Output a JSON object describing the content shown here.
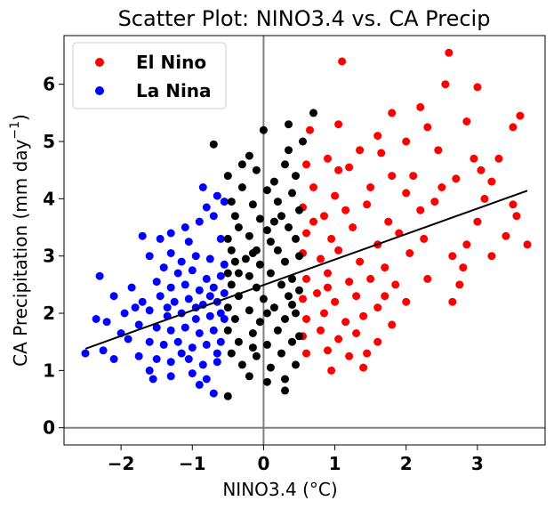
{
  "chart_data": {
    "type": "scatter",
    "title": "Scatter Plot: NINO3.4 vs. CA Precip",
    "xlabel": "NINO3.4 (°C)",
    "ylabel_main": "CA Precipitation (mm day",
    "ylabel_sup": "−1",
    "ylabel_close": ")",
    "xlim": [
      -2.8,
      3.95
    ],
    "ylim": [
      -0.3,
      6.85
    ],
    "xticks": [
      -2,
      -1,
      0,
      1,
      2,
      3
    ],
    "xtick_labels": [
      "−2",
      "−1",
      "0",
      "1",
      "2",
      "3"
    ],
    "yticks": [
      0,
      1,
      2,
      3,
      4,
      5,
      6
    ],
    "ytick_labels": [
      "0",
      "1",
      "2",
      "3",
      "4",
      "5",
      "6"
    ],
    "reference_lines": {
      "x": 0,
      "y": 0,
      "color": "#808080"
    },
    "regression_line": {
      "x1": -2.5,
      "y1": 1.38,
      "x2": 3.7,
      "y2": 4.14,
      "color": "#000000"
    },
    "legend_position": "top-left",
    "colors": {
      "el_nino": "#ff0000",
      "la_nina": "#0000ff",
      "neutral": "#000000"
    },
    "series": [
      {
        "name": "El Nino",
        "color": "#ff0000",
        "points": [
          [
            1.1,
            6.4
          ],
          [
            2.6,
            6.55
          ],
          [
            2.55,
            6.0
          ],
          [
            3.0,
            5.95
          ],
          [
            2.2,
            5.6
          ],
          [
            2.85,
            5.35
          ],
          [
            3.6,
            5.45
          ],
          [
            1.8,
            5.5
          ],
          [
            1.6,
            5.1
          ],
          [
            2.0,
            5.0
          ],
          [
            2.3,
            5.25
          ],
          [
            3.5,
            5.25
          ],
          [
            0.65,
            5.2
          ],
          [
            1.05,
            5.3
          ],
          [
            1.35,
            4.85
          ],
          [
            0.9,
            4.7
          ],
          [
            1.65,
            4.8
          ],
          [
            2.45,
            4.85
          ],
          [
            2.95,
            4.7
          ],
          [
            3.05,
            4.5
          ],
          [
            3.3,
            4.7
          ],
          [
            0.6,
            4.6
          ],
          [
            1.2,
            4.55
          ],
          [
            1.8,
            4.4
          ],
          [
            2.1,
            4.4
          ],
          [
            2.7,
            4.35
          ],
          [
            3.2,
            4.3
          ],
          [
            0.7,
            4.2
          ],
          [
            1.0,
            4.05
          ],
          [
            1.5,
            4.2
          ],
          [
            2.0,
            4.1
          ],
          [
            2.5,
            4.2
          ],
          [
            3.1,
            4.0
          ],
          [
            3.5,
            3.9
          ],
          [
            0.55,
            3.85
          ],
          [
            0.85,
            3.7
          ],
          [
            1.15,
            3.8
          ],
          [
            1.45,
            3.9
          ],
          [
            1.75,
            3.6
          ],
          [
            2.4,
            3.95
          ],
          [
            3.55,
            3.7
          ],
          [
            0.6,
            3.4
          ],
          [
            0.95,
            3.3
          ],
          [
            1.25,
            3.5
          ],
          [
            1.6,
            3.2
          ],
          [
            1.9,
            3.4
          ],
          [
            2.25,
            3.3
          ],
          [
            2.85,
            3.2
          ],
          [
            3.4,
            3.35
          ],
          [
            3.7,
            3.2
          ],
          [
            0.55,
            3.05
          ],
          [
            0.8,
            2.95
          ],
          [
            1.05,
            3.1
          ],
          [
            1.35,
            2.9
          ],
          [
            1.7,
            2.8
          ],
          [
            2.05,
            3.05
          ],
          [
            2.65,
            3.0
          ],
          [
            3.2,
            3.0
          ],
          [
            0.6,
            2.6
          ],
          [
            0.9,
            2.7
          ],
          [
            1.2,
            2.55
          ],
          [
            1.5,
            2.6
          ],
          [
            1.85,
            2.5
          ],
          [
            2.3,
            2.6
          ],
          [
            2.75,
            2.5
          ],
          [
            0.55,
            2.25
          ],
          [
            0.75,
            2.35
          ],
          [
            1.0,
            2.2
          ],
          [
            1.3,
            2.3
          ],
          [
            1.6,
            2.1
          ],
          [
            2.0,
            2.2
          ],
          [
            2.65,
            2.2
          ],
          [
            0.6,
            1.9
          ],
          [
            0.85,
            2.0
          ],
          [
            1.15,
            1.85
          ],
          [
            1.4,
            1.95
          ],
          [
            1.8,
            1.8
          ],
          [
            0.55,
            1.6
          ],
          [
            0.8,
            1.7
          ],
          [
            1.05,
            1.55
          ],
          [
            1.3,
            1.65
          ],
          [
            1.6,
            1.5
          ],
          [
            0.6,
            1.3
          ],
          [
            0.9,
            1.35
          ],
          [
            1.2,
            1.25
          ],
          [
            1.45,
            1.3
          ],
          [
            0.95,
            1.0
          ],
          [
            1.4,
            1.05
          ],
          [
            0.7,
            3.6
          ],
          [
            1.05,
            4.5
          ],
          [
            2.2,
            3.8
          ],
          [
            2.8,
            2.8
          ],
          [
            3.0,
            3.6
          ],
          [
            1.7,
            2.3
          ],
          [
            0.9,
            2.45
          ]
        ]
      },
      {
        "name": "La Nina",
        "color": "#0000ff",
        "points": [
          [
            -0.85,
            4.2
          ],
          [
            -0.65,
            4.05
          ],
          [
            -0.8,
            3.85
          ],
          [
            -0.55,
            3.95
          ],
          [
            -1.1,
            3.5
          ],
          [
            -0.9,
            3.6
          ],
          [
            -0.7,
            3.7
          ],
          [
            -1.3,
            3.4
          ],
          [
            -1.7,
            3.35
          ],
          [
            -1.45,
            3.3
          ],
          [
            -1.05,
            3.25
          ],
          [
            -0.6,
            3.3
          ],
          [
            -1.6,
            3.0
          ],
          [
            -1.3,
            3.05
          ],
          [
            -1.15,
            2.9
          ],
          [
            -0.95,
            3.0
          ],
          [
            -0.75,
            2.95
          ],
          [
            -0.55,
            2.85
          ],
          [
            -2.3,
            2.65
          ],
          [
            -1.4,
            2.8
          ],
          [
            -1.2,
            2.7
          ],
          [
            -1.0,
            2.75
          ],
          [
            -0.8,
            2.6
          ],
          [
            -0.6,
            2.65
          ],
          [
            -1.85,
            2.45
          ],
          [
            -1.5,
            2.55
          ],
          [
            -1.3,
            2.45
          ],
          [
            -1.1,
            2.5
          ],
          [
            -0.9,
            2.4
          ],
          [
            -0.7,
            2.45
          ],
          [
            -0.55,
            2.35
          ],
          [
            -2.1,
            2.3
          ],
          [
            -1.7,
            2.2
          ],
          [
            -1.45,
            2.3
          ],
          [
            -1.25,
            2.2
          ],
          [
            -1.05,
            2.25
          ],
          [
            -0.85,
            2.15
          ],
          [
            -0.65,
            2.2
          ],
          [
            -1.95,
            2.0
          ],
          [
            -1.6,
            2.05
          ],
          [
            -1.35,
            1.95
          ],
          [
            -1.15,
            2.0
          ],
          [
            -0.95,
            1.9
          ],
          [
            -0.75,
            1.95
          ],
          [
            -0.55,
            1.9
          ],
          [
            -2.35,
            1.9
          ],
          [
            -2.2,
            1.85
          ],
          [
            -1.75,
            1.8
          ],
          [
            -1.5,
            1.75
          ],
          [
            -1.3,
            1.7
          ],
          [
            -1.1,
            1.75
          ],
          [
            -0.9,
            1.65
          ],
          [
            -0.7,
            1.7
          ],
          [
            -2.5,
            1.3
          ],
          [
            -2.25,
            1.35
          ],
          [
            -1.9,
            1.55
          ],
          [
            -1.6,
            1.5
          ],
          [
            -1.4,
            1.45
          ],
          [
            -1.2,
            1.5
          ],
          [
            -1.0,
            1.4
          ],
          [
            -0.8,
            1.45
          ],
          [
            -0.6,
            1.5
          ],
          [
            -2.1,
            1.2
          ],
          [
            -1.75,
            1.25
          ],
          [
            -1.5,
            1.2
          ],
          [
            -1.3,
            1.15
          ],
          [
            -1.05,
            1.2
          ],
          [
            -0.85,
            1.1
          ],
          [
            -0.65,
            1.15
          ],
          [
            -1.6,
            1.0
          ],
          [
            -1.3,
            0.9
          ],
          [
            -1.0,
            0.95
          ],
          [
            -0.8,
            0.85
          ],
          [
            -1.55,
            0.85
          ],
          [
            -0.7,
            0.6
          ],
          [
            -0.9,
            0.75
          ],
          [
            -1.15,
            1.3
          ],
          [
            -0.6,
            2.0
          ],
          [
            -0.75,
            2.3
          ],
          [
            -0.95,
            2.1
          ],
          [
            -1.8,
            2.1
          ],
          [
            -2.0,
            1.65
          ],
          [
            -1.35,
            2.1
          ],
          [
            -0.65,
            1.3
          ]
        ]
      },
      {
        "name": "",
        "color": "#000000",
        "points": [
          [
            -0.7,
            4.95
          ],
          [
            0.0,
            5.2
          ],
          [
            0.7,
            5.5
          ],
          [
            0.35,
            5.3
          ],
          [
            0.55,
            5.0
          ],
          [
            -0.2,
            4.75
          ],
          [
            0.3,
            4.6
          ],
          [
            -0.5,
            4.4
          ],
          [
            -0.1,
            4.5
          ],
          [
            0.15,
            4.3
          ],
          [
            0.45,
            4.4
          ],
          [
            -0.3,
            4.2
          ],
          [
            0.05,
            4.15
          ],
          [
            0.4,
            4.1
          ],
          [
            -0.45,
            3.95
          ],
          [
            -0.15,
            3.9
          ],
          [
            0.2,
            3.95
          ],
          [
            0.5,
            3.8
          ],
          [
            -0.4,
            3.7
          ],
          [
            -0.05,
            3.65
          ],
          [
            0.25,
            3.7
          ],
          [
            -0.35,
            3.5
          ],
          [
            0.05,
            3.45
          ],
          [
            0.35,
            3.5
          ],
          [
            -0.5,
            3.3
          ],
          [
            -0.2,
            3.35
          ],
          [
            0.1,
            3.25
          ],
          [
            0.45,
            3.3
          ],
          [
            -0.45,
            3.1
          ],
          [
            -0.15,
            3.05
          ],
          [
            0.2,
            3.1
          ],
          [
            0.5,
            3.0
          ],
          [
            -0.4,
            2.9
          ],
          [
            -0.05,
            2.85
          ],
          [
            0.3,
            2.9
          ],
          [
            -0.5,
            2.7
          ],
          [
            -0.2,
            2.65
          ],
          [
            0.1,
            2.7
          ],
          [
            0.4,
            2.6
          ],
          [
            -0.45,
            2.5
          ],
          [
            -0.1,
            2.45
          ],
          [
            0.25,
            2.5
          ],
          [
            0.5,
            2.4
          ],
          [
            -0.35,
            2.3
          ],
          [
            0.0,
            2.25
          ],
          [
            0.35,
            2.3
          ],
          [
            -0.5,
            2.1
          ],
          [
            -0.2,
            2.05
          ],
          [
            0.15,
            2.1
          ],
          [
            0.45,
            2.0
          ],
          [
            -0.4,
            1.9
          ],
          [
            -0.05,
            1.85
          ],
          [
            0.3,
            1.9
          ],
          [
            -0.5,
            1.7
          ],
          [
            -0.15,
            1.65
          ],
          [
            0.2,
            1.7
          ],
          [
            0.5,
            1.6
          ],
          [
            -0.35,
            1.5
          ],
          [
            0.05,
            1.45
          ],
          [
            0.4,
            1.5
          ],
          [
            -0.45,
            1.3
          ],
          [
            -0.1,
            1.25
          ],
          [
            0.25,
            1.3
          ],
          [
            -0.3,
            1.1
          ],
          [
            0.1,
            1.05
          ],
          [
            0.45,
            1.1
          ],
          [
            -0.2,
            0.9
          ],
          [
            0.3,
            0.85
          ],
          [
            -0.5,
            0.55
          ],
          [
            0.3,
            0.65
          ],
          [
            0.05,
            0.8
          ],
          [
            -0.25,
            2.95
          ],
          [
            0.15,
            3.6
          ],
          [
            -0.3,
            4.6
          ],
          [
            0.35,
            4.85
          ],
          [
            -0.1,
            3.1
          ],
          [
            0.05,
            2.0
          ],
          [
            -0.35,
            2.7
          ],
          [
            0.4,
            2.15
          ],
          [
            -0.15,
            1.4
          ]
        ]
      }
    ],
    "legend": [
      {
        "label": "El Nino",
        "color": "#ff0000"
      },
      {
        "label": "La Nina",
        "color": "#0000ff"
      }
    ]
  }
}
